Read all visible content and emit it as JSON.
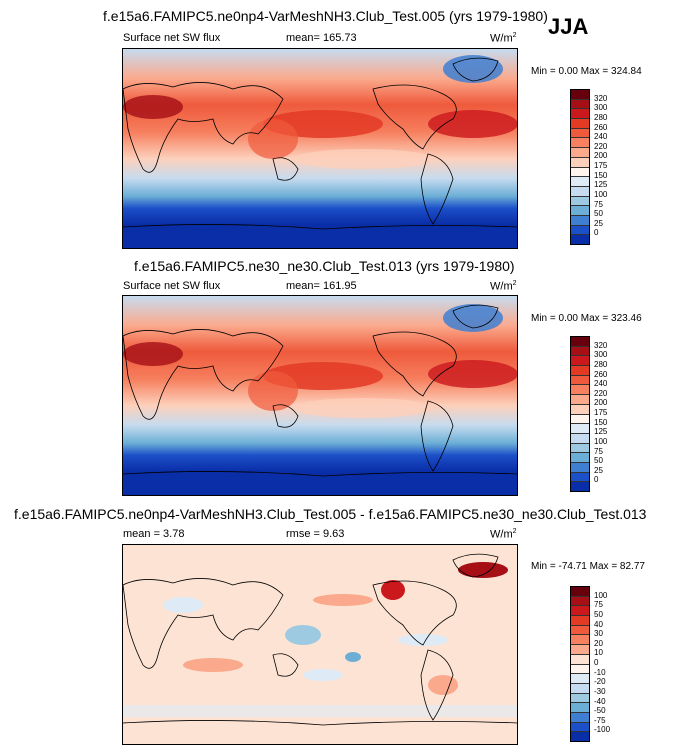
{
  "season": "JJA",
  "panels": [
    {
      "title": "f.e15a6.FAMIPC5.ne0np4-VarMeshNH3.Club_Test.005 (yrs 1979-1980)",
      "left": "Surface net SW flux",
      "center": "mean= 165.73",
      "units_base": "W/m",
      "units_exp": "2",
      "minmax": "Min =  0.00 Max = 324.84"
    },
    {
      "title": "f.e15a6.FAMIPC5.ne30_ne30.Club_Test.013 (yrs 1979-1980)",
      "left": "Surface net SW flux",
      "center": "mean= 161.95",
      "units_base": "W/m",
      "units_exp": "2",
      "minmax": "Min =  0.00 Max = 323.46"
    },
    {
      "title": "f.e15a6.FAMIPC5.ne0np4-VarMeshNH3.Club_Test.005 - f.e15a6.FAMIPC5.ne30_ne30.Club_Test.013",
      "left": "mean =   3.78",
      "center": "rmse =   9.63",
      "units_base": "W/m",
      "units_exp": "2",
      "minmax": "Min = -74.71 Max =  82.77"
    }
  ],
  "colorbar_abs": {
    "labels": [
      "320",
      "300",
      "280",
      "260",
      "240",
      "220",
      "200",
      "175",
      "150",
      "125",
      "100",
      "75",
      "50",
      "25",
      "0"
    ],
    "colors": [
      "#67000d",
      "#a50f15",
      "#cb181d",
      "#e33a24",
      "#ef5a3c",
      "#f6805f",
      "#fba98c",
      "#fdd0bb",
      "#fff5ee",
      "#deebf7",
      "#c6dbef",
      "#9ecae1",
      "#6baed6",
      "#3f7fd1",
      "#1c50c9",
      "#0a2ea8"
    ]
  },
  "colorbar_diff": {
    "labels": [
      "100",
      "75",
      "50",
      "40",
      "30",
      "20",
      "10",
      "0",
      "-10",
      "-20",
      "-30",
      "-40",
      "-50",
      "-75",
      "-100"
    ],
    "colors": [
      "#67000d",
      "#a50f15",
      "#cb181d",
      "#e33a24",
      "#ef5a3c",
      "#f6805f",
      "#fba98c",
      "#fde3d3",
      "#fff5ee",
      "#deebf7",
      "#c6dbef",
      "#9ecae1",
      "#6baed6",
      "#3f7fd1",
      "#1c50c9",
      "#0a2ea8"
    ]
  }
}
